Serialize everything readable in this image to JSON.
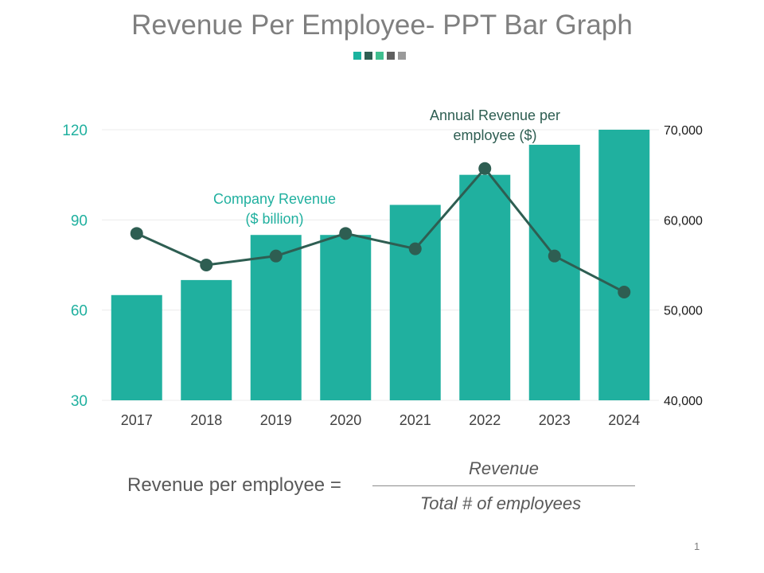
{
  "slide": {
    "title": "Revenue Per Employee- PPT Bar Graph",
    "deco_colors": [
      "#1ab39f",
      "#2e5e52",
      "#3fbf8f",
      "#5f5f5f",
      "#9a9a9a"
    ],
    "page_number": "1"
  },
  "formula": {
    "lhs": "Revenue per employee =",
    "numerator": "Revenue",
    "denominator": "Total # of employees"
  },
  "chart_data": {
    "type": "bar",
    "categories": [
      "2017",
      "2018",
      "2019",
      "2020",
      "2021",
      "2022",
      "2023",
      "2024"
    ],
    "series": [
      {
        "name": "Company Revenue\n($ billion)",
        "type": "bar",
        "axis": "left",
        "values": [
          65,
          70,
          85,
          85,
          95,
          105,
          115,
          120
        ],
        "color": "#20b09f"
      },
      {
        "name": "Annual Revenue per\nemployee ($)",
        "type": "line",
        "axis": "right",
        "values": [
          58500,
          55000,
          56000,
          58500,
          56800,
          65700,
          56000,
          52000
        ],
        "color": "#2e5e52"
      }
    ],
    "y_left": {
      "ticks": [
        "30",
        "60",
        "90",
        "120"
      ],
      "min": 30,
      "max": 120
    },
    "y_right": {
      "ticks": [
        "40,000",
        "50,000",
        "60,000",
        "70,000"
      ],
      "min": 40000,
      "max": 70000
    },
    "grid": true,
    "left_axis_color": "#20b09f",
    "right_axis_color": "#1a1a1a"
  }
}
